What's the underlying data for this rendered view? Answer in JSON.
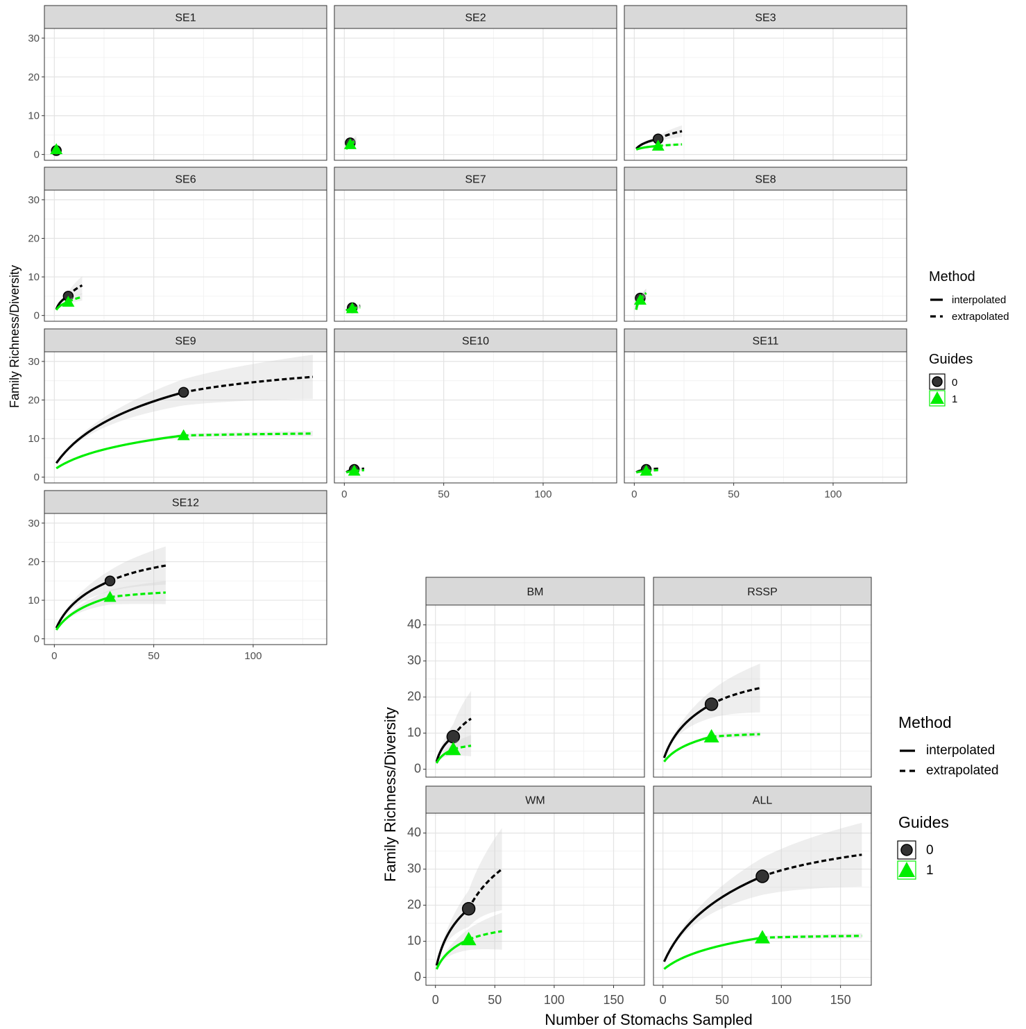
{
  "chart_data": [
    {
      "type": "line",
      "title": "",
      "xlabel": "",
      "ylabel": "Family Richness/Diversity",
      "xlim": [
        -5,
        137
      ],
      "ylim": [
        -1.5,
        32.5
      ],
      "yticks": [
        0,
        10,
        20,
        30
      ],
      "xticks": [
        0,
        50,
        100
      ],
      "legend_placement": "right",
      "legends": [
        {
          "title": "Method",
          "entries": [
            "interpolated",
            "extrapolated"
          ]
        },
        {
          "title": "Guides",
          "entries": [
            "0",
            "1"
          ]
        }
      ],
      "series_styles": [
        {
          "guide": "0",
          "color": "#000000",
          "marker": "circle"
        },
        {
          "guide": "1",
          "color": "#00ee00",
          "marker": "triangle"
        }
      ],
      "panels": [
        {
          "label": "SE1",
          "x_axis_shown": false,
          "series": [
            {
              "guide": "0",
              "n": 1,
              "obs": 1,
              "ext_x": 2,
              "ext_y": 1.2,
              "ci": 0.2
            },
            {
              "guide": "1",
              "n": 1,
              "obs": 1.3,
              "ext_x": 2,
              "ext_y": 1.5,
              "ci": 0.2
            }
          ]
        },
        {
          "label": "SE2",
          "x_axis_shown": false,
          "series": [
            {
              "guide": "0",
              "n": 3,
              "obs": 3,
              "ext_x": 6,
              "ext_y": 4,
              "ci": 0.2
            },
            {
              "guide": "1",
              "n": 3,
              "obs": 2.6,
              "ext_x": 6,
              "ext_y": 3.6,
              "ci": 0.2
            }
          ]
        },
        {
          "label": "SE3",
          "x_axis_shown": false,
          "series": [
            {
              "guide": "0",
              "n": 12,
              "obs": 4,
              "ext_x": 24,
              "ext_y": 6,
              "ci": 0.25
            },
            {
              "guide": "1",
              "n": 12,
              "obs": 2.2,
              "ext_x": 24,
              "ext_y": 2.6,
              "ci": 0.12
            }
          ]
        },
        {
          "label": "SE6",
          "x_axis_shown": false,
          "series": [
            {
              "guide": "0",
              "n": 7,
              "obs": 5,
              "ext_x": 14,
              "ext_y": 7.8,
              "ci": 0.3
            },
            {
              "guide": "1",
              "n": 7,
              "obs": 3.5,
              "ext_x": 14,
              "ext_y": 4.8,
              "ci": 0.2
            }
          ]
        },
        {
          "label": "SE7",
          "x_axis_shown": false,
          "series": [
            {
              "guide": "0",
              "n": 4,
              "obs": 2,
              "ext_x": 8,
              "ext_y": 2.5,
              "ci": 0.2
            },
            {
              "guide": "1",
              "n": 4,
              "obs": 1.8,
              "ext_x": 8,
              "ext_y": 2.1,
              "ci": 0.2
            }
          ]
        },
        {
          "label": "SE8",
          "x_axis_shown": false,
          "series": [
            {
              "guide": "0",
              "n": 3,
              "obs": 4.5,
              "ext_x": 6,
              "ext_y": 5.8,
              "ci": 0.2
            },
            {
              "guide": "1",
              "n": 3,
              "obs": 4,
              "ext_x": 6,
              "ext_y": 5.8,
              "ci": 0.2
            }
          ]
        },
        {
          "label": "SE9",
          "x_axis_shown": false,
          "series": [
            {
              "guide": "0",
              "n": 65,
              "obs": 22,
              "ext_x": 130,
              "ext_y": 26,
              "ci": 0.22
            },
            {
              "guide": "1",
              "n": 65,
              "obs": 10.8,
              "ext_x": 130,
              "ext_y": 11.3,
              "ci": 0.06
            }
          ]
        },
        {
          "label": "SE10",
          "x_axis_shown": true,
          "series": [
            {
              "guide": "0",
              "n": 5,
              "obs": 2,
              "ext_x": 10,
              "ext_y": 2.2,
              "ci": 0.15
            },
            {
              "guide": "1",
              "n": 5,
              "obs": 1.6,
              "ext_x": 10,
              "ext_y": 1.8,
              "ci": 0.15
            }
          ]
        },
        {
          "label": "SE11",
          "x_axis_shown": true,
          "series": [
            {
              "guide": "0",
              "n": 6,
              "obs": 2,
              "ext_x": 12,
              "ext_y": 2.2,
              "ci": 0.15
            },
            {
              "guide": "1",
              "n": 6,
              "obs": 1.6,
              "ext_x": 12,
              "ext_y": 1.8,
              "ci": 0.15
            }
          ]
        },
        {
          "label": "SE12",
          "x_axis_shown": true,
          "series": [
            {
              "guide": "0",
              "n": 28,
              "obs": 15,
              "ext_x": 56,
              "ext_y": 19,
              "ci": 0.26
            },
            {
              "guide": "1",
              "n": 28,
              "obs": 10.8,
              "ext_x": 56,
              "ext_y": 12,
              "ci": 0.25
            }
          ]
        }
      ]
    },
    {
      "type": "line",
      "title": "",
      "xlabel": "Number of Stomachs Sampled",
      "ylabel": "Family Richness/Diversity",
      "xlim": [
        -8,
        176
      ],
      "ylim": [
        -2.2,
        45.5
      ],
      "yticks": [
        0,
        10,
        20,
        30,
        40
      ],
      "xticks": [
        0,
        50,
        100,
        150
      ],
      "legend_placement": "right",
      "legends": [
        {
          "title": "Method",
          "entries": [
            "interpolated",
            "extrapolated"
          ]
        },
        {
          "title": "Guides",
          "entries": [
            "0",
            "1"
          ]
        }
      ],
      "series_styles": [
        {
          "guide": "0",
          "color": "#000000",
          "marker": "circle"
        },
        {
          "guide": "1",
          "color": "#00ee00",
          "marker": "triangle"
        }
      ],
      "panels": [
        {
          "label": "BM",
          "x_axis_shown": false,
          "series": [
            {
              "guide": "0",
              "n": 15,
              "obs": 9,
              "ext_x": 30,
              "ext_y": 14,
              "ci": 0.55
            },
            {
              "guide": "1",
              "n": 15,
              "obs": 5.5,
              "ext_x": 30,
              "ext_y": 6.5,
              "ci": 0.45
            }
          ]
        },
        {
          "label": "RSSP",
          "x_axis_shown": false,
          "series": [
            {
              "guide": "0",
              "n": 41,
              "obs": 18,
              "ext_x": 82,
              "ext_y": 22.5,
              "ci": 0.3
            },
            {
              "guide": "1",
              "n": 41,
              "obs": 9,
              "ext_x": 82,
              "ext_y": 9.7,
              "ci": 0.08
            }
          ]
        },
        {
          "label": "WM",
          "x_axis_shown": true,
          "series": [
            {
              "guide": "0",
              "n": 28,
              "obs": 19,
              "ext_x": 56,
              "ext_y": 30,
              "ci": 0.38
            },
            {
              "guide": "1",
              "n": 28,
              "obs": 10.5,
              "ext_x": 56,
              "ext_y": 12.8,
              "ci": 0.4
            }
          ]
        },
        {
          "label": "ALL",
          "x_axis_shown": true,
          "series": [
            {
              "guide": "0",
              "n": 84,
              "obs": 28,
              "ext_x": 168,
              "ext_y": 34,
              "ci": 0.26
            },
            {
              "guide": "1",
              "n": 84,
              "obs": 11,
              "ext_x": 168,
              "ext_y": 11.5,
              "ci": 0.06
            }
          ]
        }
      ]
    }
  ]
}
